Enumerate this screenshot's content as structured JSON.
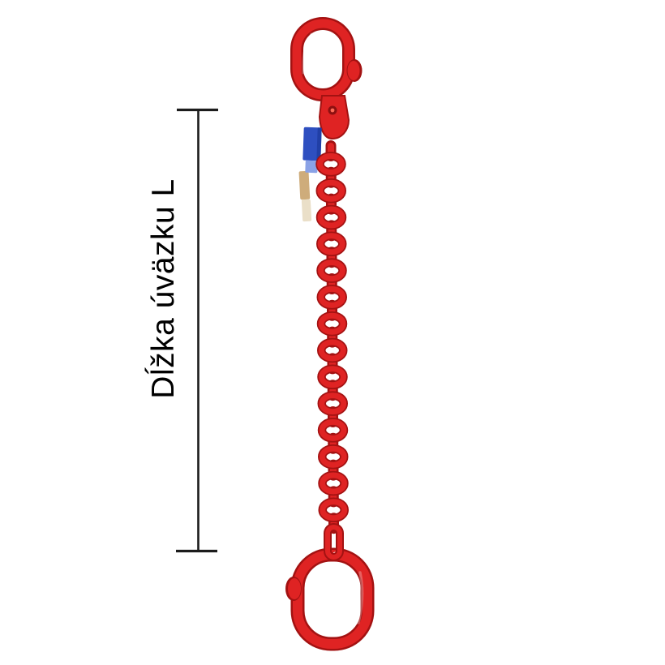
{
  "dimension_annotation": {
    "label": "Dĺžka úväzku L"
  },
  "product": {
    "type_depicted": "single-leg chain sling with oblong master links",
    "chain_link_count": 14,
    "id_tags": [
      "blue-tag",
      "tan-tag"
    ]
  },
  "colors": {
    "background": "#ffffff",
    "chain_red": "#df2323",
    "chain_red_dark": "#a31212",
    "chain_red_light": "#ff6a55",
    "tag_blue": "#2e4fc0",
    "tag_blue_dark": "#1d3a9e",
    "tag_blue_light": "#8aa2e6",
    "tag_tan": "#c9a36d",
    "tag_tan_light": "#e9ddc5",
    "dimension_line": "#1c1c1c",
    "text": "#000000"
  }
}
